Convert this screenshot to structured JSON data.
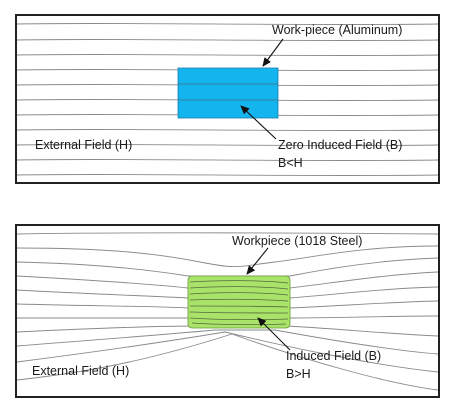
{
  "top_panel": {
    "workpiece_label": "Work-piece (Aluminum)",
    "external_field_label": "External Field (H)",
    "induced_field_label": "Zero Induced Field (B)",
    "relation_label": "B<H",
    "workpiece_color": "#14b4ef"
  },
  "bottom_panel": {
    "workpiece_label": "Workpiece (1018 Steel)",
    "external_field_label": "External Field (H)",
    "induced_field_label": "Induced Field (B)",
    "relation_label": "B>H",
    "workpiece_color": "#a9e36a"
  }
}
